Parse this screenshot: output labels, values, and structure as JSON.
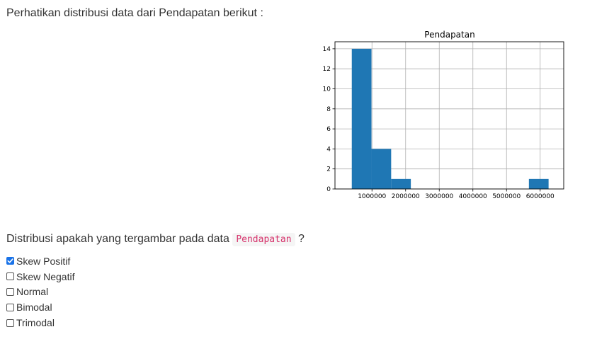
{
  "intro_text": "Perhatikan distribusi data dari Pendapatan berikut :",
  "question": {
    "prefix": "Distribusi apakah yang tergambar pada data",
    "code": "Pendapatan",
    "suffix": "?"
  },
  "options": [
    {
      "label": "Skew Positif",
      "checked": true
    },
    {
      "label": "Skew Negatif",
      "checked": false
    },
    {
      "label": "Normal",
      "checked": false
    },
    {
      "label": "Bimodal",
      "checked": false
    },
    {
      "label": "Trimodal",
      "checked": false
    }
  ],
  "chart_data": {
    "type": "bar",
    "title": "Pendapatan",
    "xlabel": "",
    "ylabel": "",
    "bins": [
      {
        "from": 400000,
        "to": 985000,
        "count": 14
      },
      {
        "from": 985000,
        "to": 1570000,
        "count": 4
      },
      {
        "from": 1570000,
        "to": 2155000,
        "count": 1
      },
      {
        "from": 2155000,
        "to": 2740000,
        "count": 0
      },
      {
        "from": 2740000,
        "to": 3325000,
        "count": 0
      },
      {
        "from": 3325000,
        "to": 3910000,
        "count": 0
      },
      {
        "from": 3910000,
        "to": 4495000,
        "count": 0
      },
      {
        "from": 4495000,
        "to": 5080000,
        "count": 0
      },
      {
        "from": 5080000,
        "to": 5665000,
        "count": 0
      },
      {
        "from": 5665000,
        "to": 6250000,
        "count": 1
      }
    ],
    "xlim": [
      -100000,
      6700000
    ],
    "ylim": [
      0,
      14.7
    ],
    "x_ticks": [
      1000000,
      2000000,
      3000000,
      4000000,
      5000000,
      6000000
    ],
    "y_ticks": [
      0,
      2,
      4,
      6,
      8,
      10,
      12,
      14
    ],
    "grid": true,
    "bar_color": "#1f77b4"
  }
}
